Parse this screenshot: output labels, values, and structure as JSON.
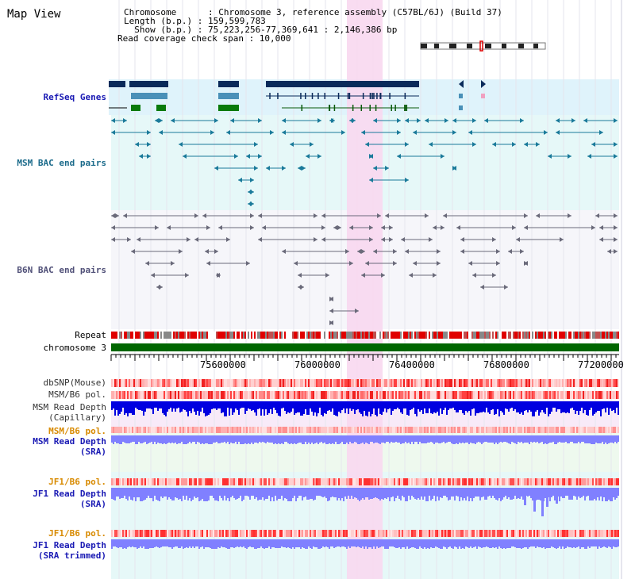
{
  "page": {
    "title": "Map View"
  },
  "header": {
    "line1": "Chromosome      : Chromosome 3, reference assembly (C57BL/6J) (Build 37)",
    "line2": "Length (b.p.) : 159,599,783",
    "line3": "  Show (b.p.) : 75,223,256-77,369,641 : 2,146,386 bp",
    "line4": "Read coverage check span : 10,000"
  },
  "tracks": {
    "refseq": "RefSeq Genes",
    "msm_bac": "MSM BAC end pairs",
    "b6n_bac": "B6N BAC end pairs",
    "repeat": "Repeat",
    "chromosome": "chromosome 3",
    "dbsnp": "dbSNP(Mouse)",
    "msm_b6_pol_1": "MSM/B6 pol.",
    "msm_depth_cap_1": "MSM Read Depth",
    "msm_depth_cap_2": "(Capillary)",
    "msm_b6_pol_2": "MSM/B6 pol.",
    "msm_depth_sra_1": "MSM Read Depth",
    "msm_depth_sra_2": "(SRA)",
    "jf1_b6_pol_1": "JF1/B6 pol.",
    "jf1_depth_sra_1": "JF1 Read Depth",
    "jf1_depth_sra_2": "(SRA)",
    "jf1_b6_pol_2": "JF1/B6 pol.",
    "jf1_depth_trim_1": "JF1 Read Depth",
    "jf1_depth_trim_2": "(SRA trimmed)"
  },
  "axis": {
    "ticks": [
      "75600000",
      "76000000",
      "76400000",
      "76800000",
      "77200000"
    ]
  },
  "colors": {
    "refseq": "#1a1aa0",
    "msm": "#1a6a8a",
    "pol": "#d88a00",
    "highlight": "#f8d8f0",
    "chrom_bar": "#006600",
    "depth_dark": "#0000e0",
    "depth_light": "#8080ff"
  }
}
